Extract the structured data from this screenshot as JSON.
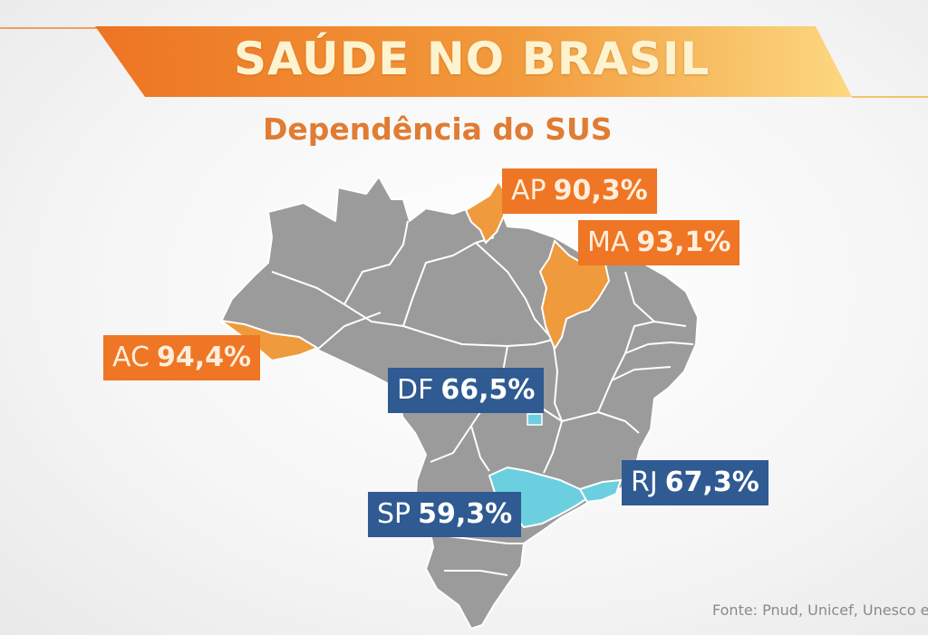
{
  "header": {
    "title": "SAÚDE NO BRASIL",
    "subtitle": "Dependência do SUS"
  },
  "colors": {
    "banner_start": "#f07a22",
    "banner_end": "#fbd07a",
    "map_gray": "#9b9b9b",
    "highlight_orange": "#ef9a3c",
    "highlight_cyan": "#6ccfdf",
    "label_orange": "#ee7624",
    "label_blue": "#2f5a92"
  },
  "states": [
    {
      "code": "AP",
      "value": "90,3%",
      "group": "orange"
    },
    {
      "code": "MA",
      "value": "93,1%",
      "group": "orange"
    },
    {
      "code": "AC",
      "value": "94,4%",
      "group": "orange"
    },
    {
      "code": "DF",
      "value": "66,5%",
      "group": "blue"
    },
    {
      "code": "RJ",
      "value": "67,3%",
      "group": "blue"
    },
    {
      "code": "SP",
      "value": "59,3%",
      "group": "blue"
    }
  ],
  "source": "Fonte: Pnud, Unicef, Unesco e"
}
